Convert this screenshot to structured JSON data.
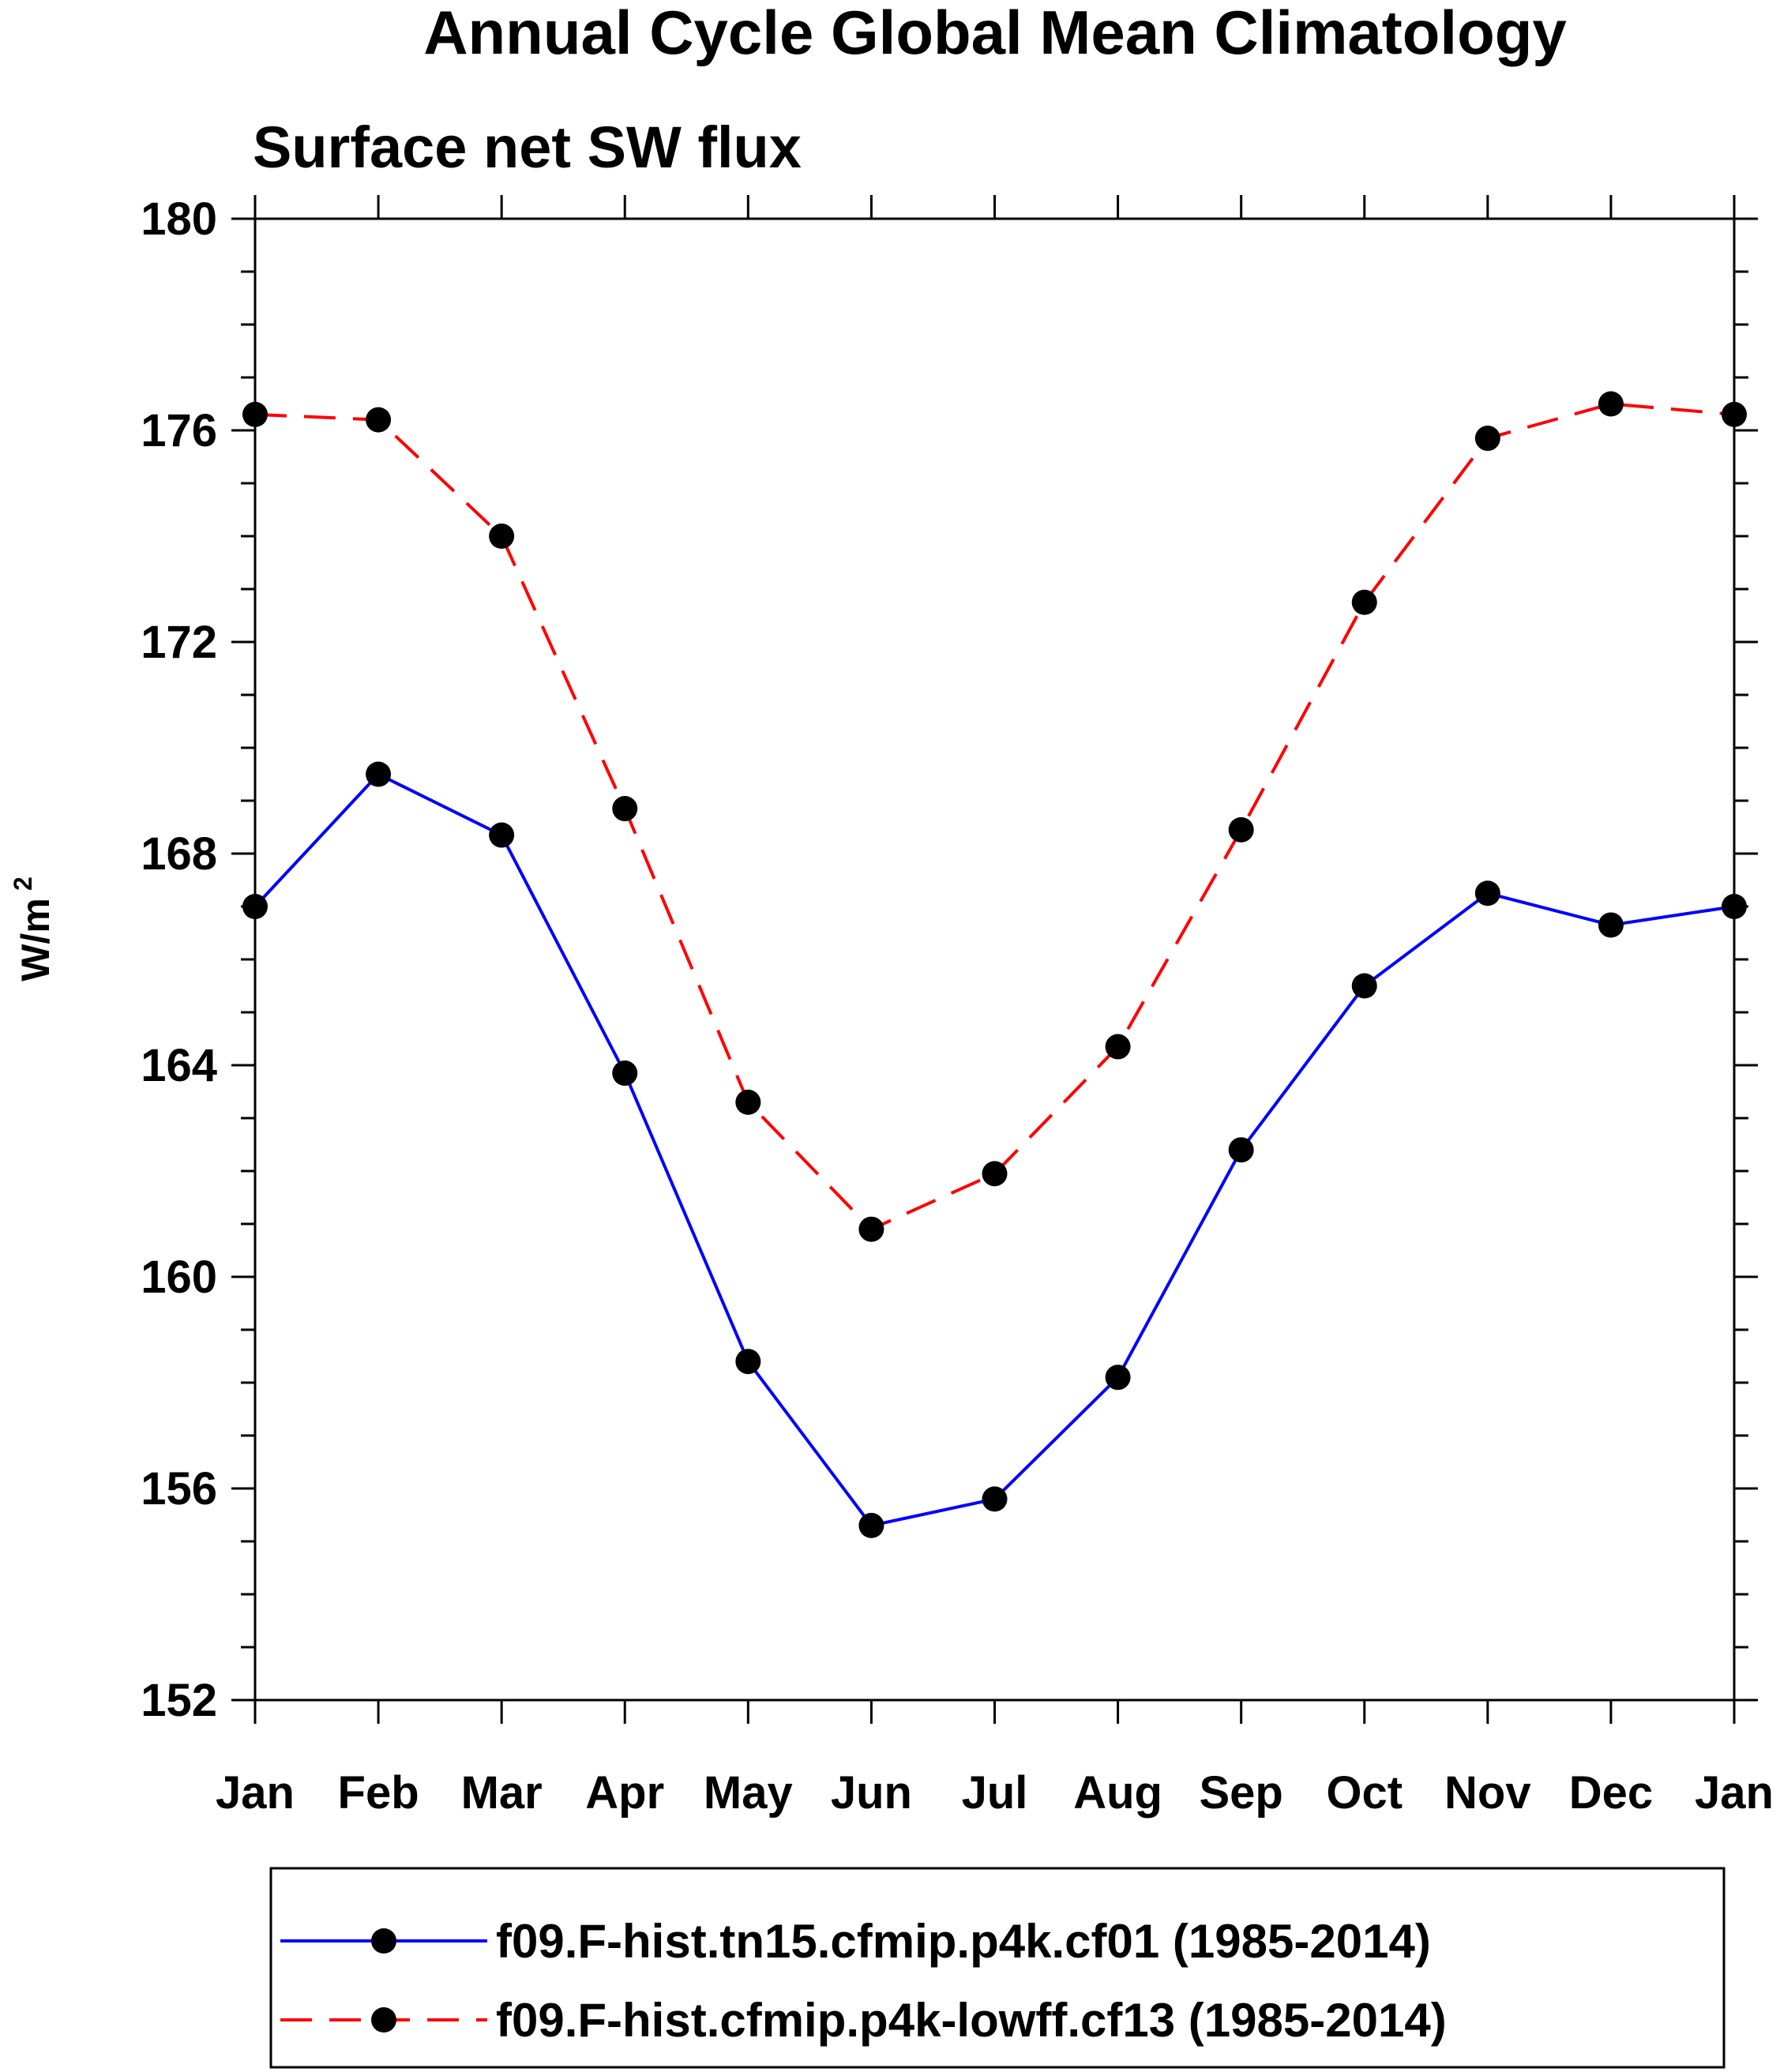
{
  "chart_data": {
    "type": "line",
    "title": "Annual Cycle Global Mean Climatology",
    "subtitle": "Surface net SW flux",
    "ylabel": "W/m",
    "ylabel_sup": "2",
    "xlabel": "",
    "ylim": [
      152,
      180
    ],
    "yticks": [
      "152",
      "156",
      "160",
      "164",
      "168",
      "172",
      "176",
      "180"
    ],
    "categories": [
      "Jan",
      "Feb",
      "Mar",
      "Apr",
      "May",
      "Jun",
      "Jul",
      "Aug",
      "Sep",
      "Oct",
      "Nov",
      "Dec",
      "Jan"
    ],
    "grid": false,
    "legend_position": "bottom",
    "series": [
      {
        "name": "f09.F-hist.tn15.cfmip.p4k.cf01 (1985-2014)",
        "color": "#0000ff",
        "line_style": "solid",
        "marker": "filled-circle",
        "values": [
          167.0,
          169.5,
          168.35,
          163.85,
          158.4,
          155.3,
          155.8,
          158.1,
          162.4,
          165.5,
          167.25,
          166.65,
          167.0
        ]
      },
      {
        "name": "f09.F-hist.cfmip.p4k-lowff.cf13 (1985-2014)",
        "color": "#ff0000",
        "line_style": "dashed",
        "marker": "filled-circle",
        "values": [
          176.3,
          176.2,
          174.0,
          168.85,
          163.3,
          160.9,
          161.95,
          164.35,
          168.45,
          172.75,
          175.85,
          176.5,
          176.3
        ]
      }
    ]
  }
}
